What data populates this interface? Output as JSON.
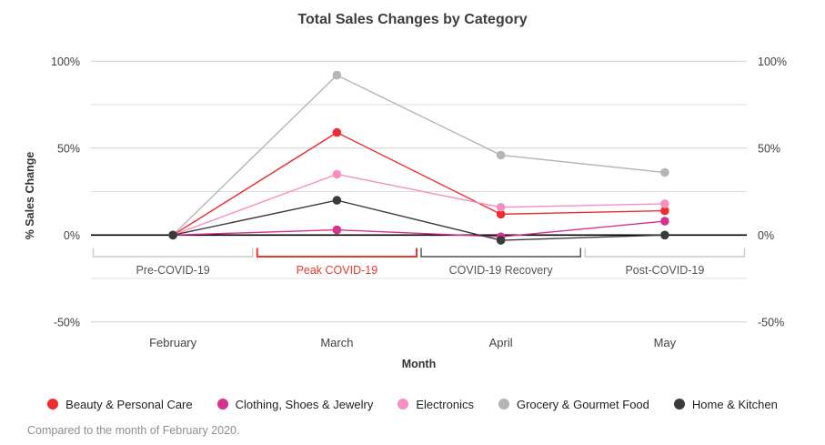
{
  "title": "Total Sales Changes by Category",
  "footnote": "Compared to the month of February 2020.",
  "y_axis": {
    "label": "% Sales Change",
    "ticks": [
      {
        "value": 100,
        "label": "100%"
      },
      {
        "value": 50,
        "label": "50%"
      },
      {
        "value": 0,
        "label": "0%"
      },
      {
        "value": -50,
        "label": "-50%"
      }
    ],
    "minor_gridlines": [
      75,
      25,
      -25
    ]
  },
  "x_axis": {
    "label": "Month",
    "categories": [
      "February",
      "March",
      "April",
      "May"
    ]
  },
  "periods": [
    {
      "label": "Pre-COVID-19",
      "bracket_color": "#cccccc",
      "label_color": "#545454",
      "band": 0
    },
    {
      "label": "Peak COVID-19",
      "bracket_color": "#e8392e",
      "label_color": "#e8392e",
      "band": 1
    },
    {
      "label": "COVID-19 Recovery",
      "bracket_color": "#4d4d4d",
      "label_color": "#545454",
      "band": 2
    },
    {
      "label": "Post-COVID-19",
      "bracket_color": "#cccccc",
      "label_color": "#545454",
      "band": 3
    }
  ],
  "chart_data": {
    "type": "line",
    "title": "Total Sales Changes by Category",
    "xlabel": "Month",
    "ylabel": "% Sales Change",
    "x": [
      "February",
      "March",
      "April",
      "May"
    ],
    "ylim": [
      -50,
      100
    ],
    "grid": true,
    "legend_position": "bottom",
    "series": [
      {
        "name": "Beauty & Personal Care",
        "color": "#ee2d32",
        "values": [
          0,
          59,
          12,
          14
        ]
      },
      {
        "name": "Clothing, Shoes & Jewelry",
        "color": "#d53390",
        "values": [
          0,
          3,
          -1,
          8
        ]
      },
      {
        "name": "Electronics",
        "color": "#f78fc2",
        "values": [
          0,
          35,
          16,
          18
        ]
      },
      {
        "name": "Grocery & Gourmet Food",
        "color": "#b5b5b5",
        "values": [
          0,
          92,
          46,
          36
        ]
      },
      {
        "name": "Home & Kitchen",
        "color": "#3b3b3b",
        "values": [
          0,
          20,
          -3,
          0
        ]
      }
    ],
    "annotations": [
      "Pre-COVID-19",
      "Peak COVID-19",
      "COVID-19 Recovery",
      "Post-COVID-19"
    ]
  }
}
